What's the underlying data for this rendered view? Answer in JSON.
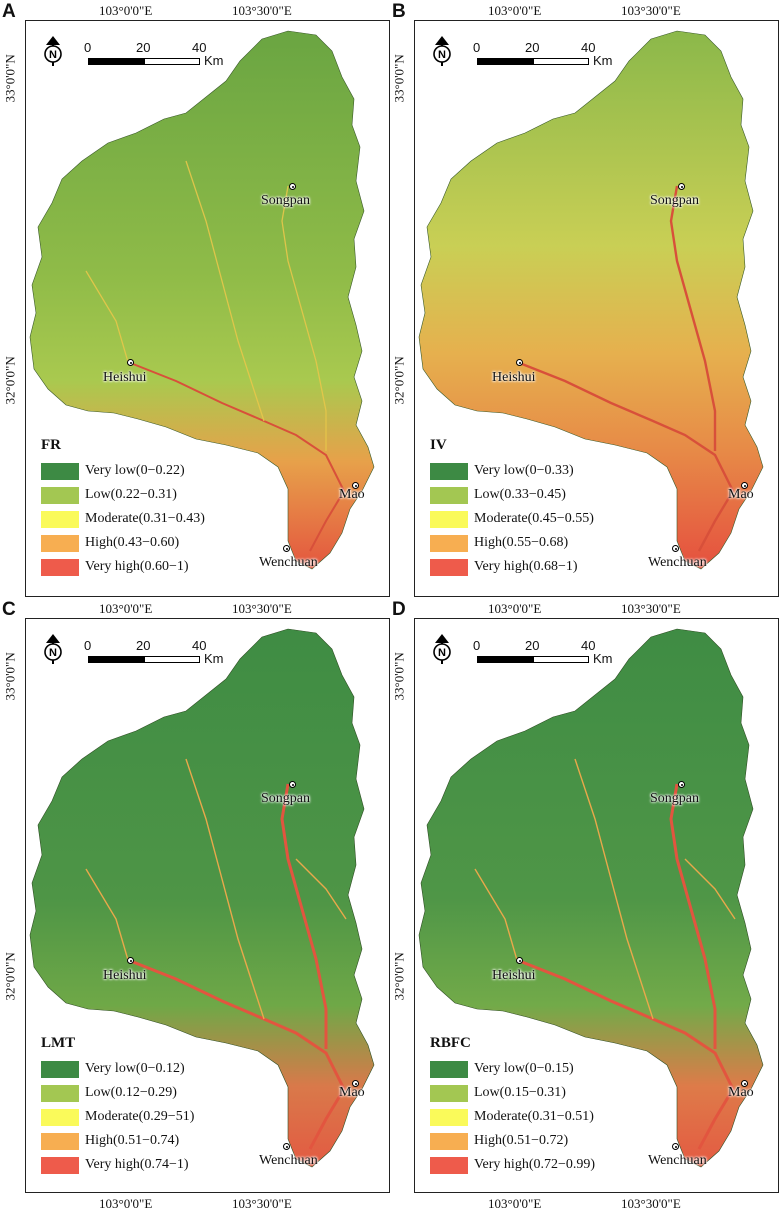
{
  "coord_labels": {
    "lon_west": "103°0'0\"E",
    "lon_east": "103°30'0\"E",
    "lat_north": "33°0'0\"N",
    "lat_south": "32°0'0\"N"
  },
  "scalebar": {
    "ticks": [
      "0",
      "20",
      "40"
    ],
    "unit": "Km"
  },
  "north_arrow": {
    "letter": "N",
    "icon": "north-arrow-icon"
  },
  "cities": [
    "Songpan",
    "Heishui",
    "Mao",
    "Wenchuan"
  ],
  "colors": {
    "very_low": "#3d8a44",
    "low": "#a3c752",
    "moderate": "#fafa5a",
    "high": "#f7ae51",
    "very_high": "#ee5b4b"
  },
  "panels": [
    {
      "letter": "A",
      "legend_title": "FR",
      "classes": [
        "Very low(0−0.22)",
        "Low(0.22−0.31)",
        "Moderate(0.31−0.43)",
        "High(0.43−0.60)",
        "Very high(0.60−1)"
      ]
    },
    {
      "letter": "B",
      "legend_title": "IV",
      "classes": [
        "Very low(0−0.33)",
        "Low(0.33−0.45)",
        "Moderate(0.45−0.55)",
        "High(0.55−0.68)",
        "Very high(0.68−1)"
      ]
    },
    {
      "letter": "C",
      "legend_title": "LMT",
      "classes": [
        "Very low(0−0.12)",
        "Low(0.12−0.29)",
        "Moderate(0.29−51)",
        "High(0.51−0.74)",
        "Very high(0.74−1)"
      ]
    },
    {
      "letter": "D",
      "legend_title": "RBFC",
      "classes": [
        "Very low(0−0.15)",
        "Low(0.15−0.31)",
        "Moderate(0.31−0.51)",
        "High(0.51−0.72)",
        "Very high(0.72−0.99)"
      ]
    }
  ]
}
